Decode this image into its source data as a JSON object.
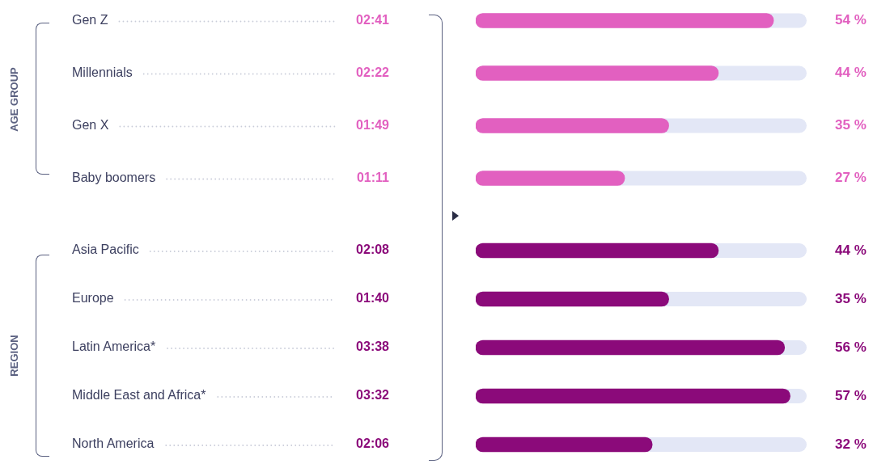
{
  "chart_data": [
    {
      "type": "bar",
      "orientation": "horizontal",
      "ylabel": "AGE GROUP",
      "categories": [
        "Gen Z",
        "Millennials",
        "Gen X",
        "Baby boomers"
      ],
      "values": [
        54,
        44,
        35,
        27
      ],
      "color": "#e260c0",
      "value_labels": [
        "54 %",
        "44 %",
        "35 %",
        "27 %"
      ],
      "annotations": [
        "02:41",
        "02:22",
        "01:49",
        "01:11"
      ],
      "xlim": [
        0,
        60
      ],
      "tick_labels": "y"
    },
    {
      "type": "bar",
      "orientation": "horizontal",
      "ylabel": "REGION",
      "categories": [
        "Asia Pacific",
        "Europe",
        "Latin America*",
        "Middle East and Africa*",
        "North America"
      ],
      "values": [
        44,
        35,
        56,
        57,
        32
      ],
      "color": "#8b0a7a",
      "value_labels": [
        "44 %",
        "35 %",
        "56 %",
        "57 %",
        "32 %"
      ],
      "annotations": [
        "02:08",
        "01:40",
        "03:38",
        "03:32",
        "02:06"
      ],
      "xlim": [
        0,
        60
      ],
      "tick_labels": "y"
    }
  ]
}
